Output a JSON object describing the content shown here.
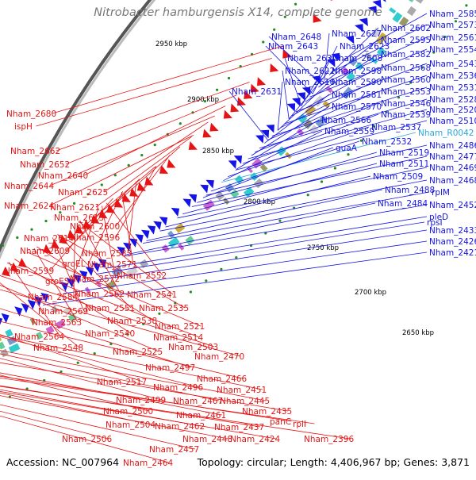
{
  "title": "Nitrobacter hamburgensis X14, complete genome",
  "footer": {
    "accession": "Accession: NC_007964",
    "summary": "Topology: circular; Length: 4,406,967 bp; Genes: 3,871"
  },
  "colors": {
    "forward_strand": "#1414e6",
    "reverse_strand": "#e61414",
    "backbone": "#808080",
    "rna_label": "#2aa7d8",
    "tick_marks": "#228b22"
  },
  "scale_ticks": [
    "2950 kbp",
    "2900 kbp",
    "2850 kbp",
    "2800 kbp",
    "2750 kbp",
    "2700 kbp",
    "2650 kbp"
  ],
  "blue_labels": [
    "Nham_2585",
    "Nham_2573",
    "Nham_2602",
    "Nham_2627",
    "Nham_2561",
    "Nham_2595",
    "Nham_2648",
    "Nham_2643",
    "Nham_2623",
    "Nham_2554",
    "Nham_2582",
    "Nham_2630",
    "Nham_2608",
    "Nham_2543",
    "Nham_2568",
    "Nham_2622",
    "Nham_2598",
    "Nham_2536",
    "Nham_2560",
    "Nham_2616",
    "Nham_2590",
    "Nham_2531",
    "Nham_2631",
    "Nham_2553",
    "Nham_2528",
    "Nham_2581",
    "Nham_2546",
    "Nham_2570",
    "Nham_2520",
    "Nham_2539",
    "Nham_2566",
    "Nham_2510",
    "Nham_2537",
    "Nham_2559",
    "Nham_R0042",
    "Nham_2532",
    "guaA",
    "Nham_2486",
    "Nham_2519",
    "Nham_2477",
    "Nham_2511",
    "Nham_2469",
    "Nham_2509",
    "Nham_2468",
    "Nham_2488",
    "rplM",
    "Nham_2484",
    "Nham_2452",
    "rpsI",
    "pleD",
    "Nham_2433",
    "Nham_2426",
    "Nham_2421"
  ],
  "red_labels": [
    "Nham_2680",
    "ispH",
    "Nham_2662",
    "Nham_2652",
    "Nham_2640",
    "Nham_2644",
    "Nham_2625",
    "Nham_2621",
    "Nham_2613",
    "Nham_2624",
    "Nham_2600",
    "Nham_2614",
    "Nham_2596",
    "Nham_2609",
    "Nham_2583",
    "groEL",
    "Nham_2571",
    "Nham_2599",
    "Nham_2572",
    "Nham_2552",
    "groES",
    "Nham_2584",
    "Nham_2562",
    "Nham_2541",
    "Nham_2569",
    "Nham_2551",
    "Nham_2535",
    "Nham_2563",
    "Nham_2538",
    "Nham_2564",
    "Nham_2521",
    "Nham_2540",
    "Nham_2514",
    "Nham_2548",
    "Nham_2525",
    "Nham_2503",
    "Nham_2470",
    "Nham_2497",
    "Nham_2517",
    "Nham_2466",
    "Nham_2496",
    "Nham_2451",
    "Nham_2499",
    "Nham_2467",
    "Nham_2445",
    "Nham_2500",
    "Nham_2461",
    "Nham_2435",
    "Nham_2504",
    "Nham_2462",
    "Nham_2437",
    "panC",
    "rplI",
    "Nham_2506",
    "Nham_2448",
    "Nham_2424",
    "Nham_2396",
    "Nham_2457",
    "Nham_2464"
  ]
}
